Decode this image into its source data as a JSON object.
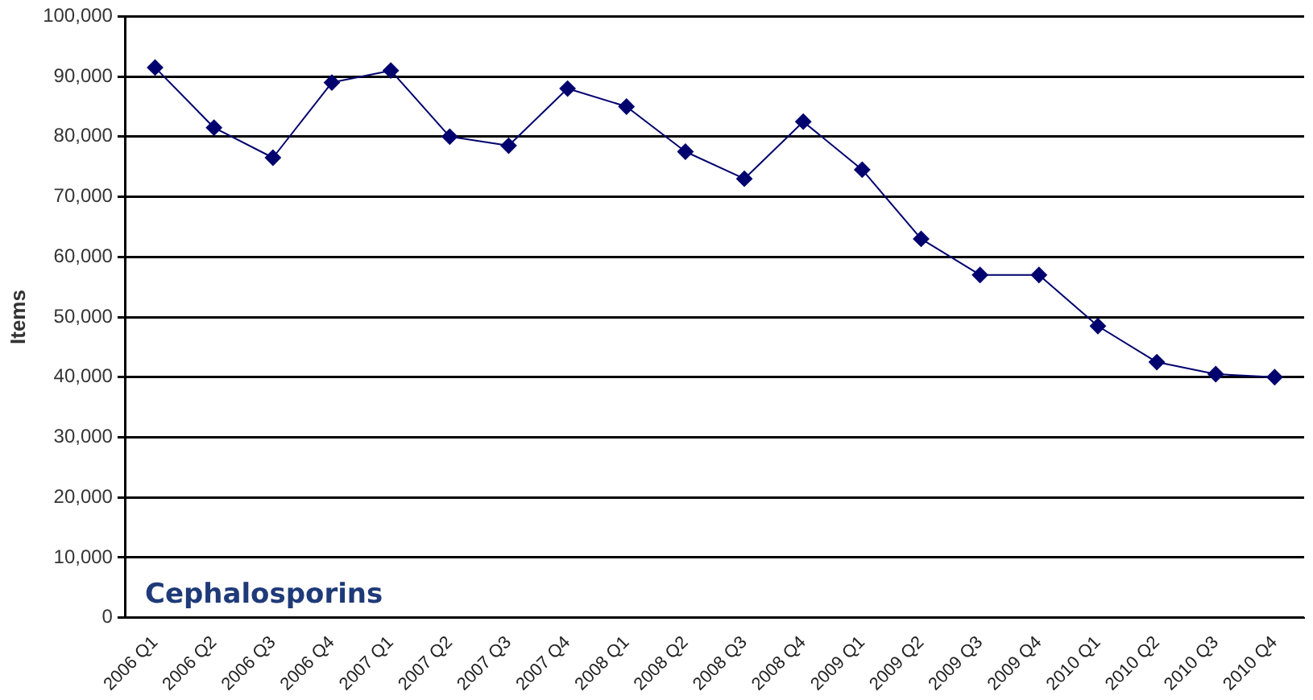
{
  "chart_data": {
    "type": "line",
    "ylabel": "Items",
    "annotations": [
      "Cephalosporins"
    ],
    "categories": [
      "2006 Q1",
      "2006 Q2",
      "2006 Q3",
      "2006 Q4",
      "2007 Q1",
      "2007 Q2",
      "2007 Q3",
      "2007 Q4",
      "2008 Q1",
      "2008 Q2",
      "2008 Q3",
      "2008 Q4",
      "2009 Q1",
      "2009 Q2",
      "2009 Q3",
      "2009 Q4",
      "2010 Q1",
      "2010 Q2",
      "2010 Q3",
      "2010 Q4"
    ],
    "series": [
      {
        "color": "#00006e",
        "values": [
          91500,
          81500,
          76500,
          89000,
          91000,
          80000,
          78500,
          88000,
          85000,
          77500,
          73000,
          82500,
          74500,
          63000,
          57000,
          57000,
          48500,
          42500,
          40500,
          40000
        ]
      }
    ],
    "ylim": [
      0,
      100000
    ],
    "yticks": [
      0,
      {
        "value": 10000,
        "label": "10,000"
      },
      {
        "value": 20000,
        "label": "20,000"
      },
      {
        "value": 30000,
        "label": "30,000"
      },
      {
        "value": 40000,
        "label": "40,000"
      },
      {
        "value": 50000,
        "label": "50,000"
      },
      {
        "value": 60000,
        "label": "60,000"
      },
      {
        "value": 70000,
        "label": "70,000"
      },
      {
        "value": 80000,
        "label": "80,000"
      },
      {
        "value": 90000,
        "label": "90,000"
      },
      {
        "value": 100000,
        "label": "100,000"
      }
    ],
    "grid": "y",
    "legend": false,
    "marker": "diamond",
    "line_style": "solid"
  }
}
